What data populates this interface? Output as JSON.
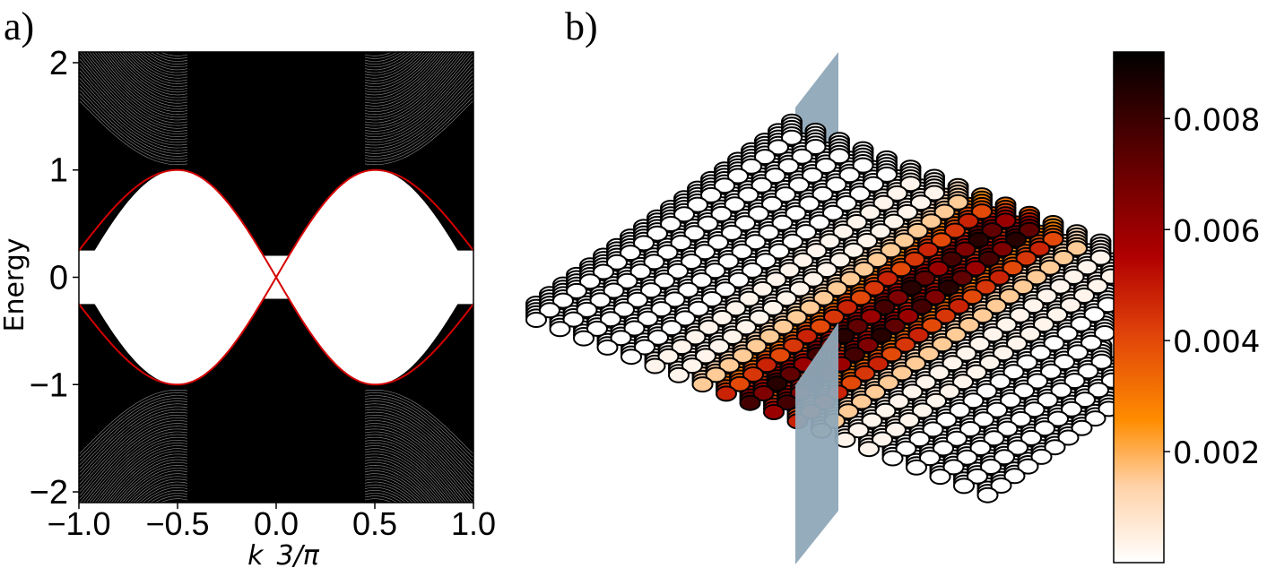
{
  "panel_labels": {
    "a": "a)",
    "b": "b)"
  },
  "chart_data": [
    {
      "type": "line",
      "panel": "a)",
      "xlabel": "k_3/π",
      "ylabel": "Energy",
      "xlim": [
        -1.0,
        1.0
      ],
      "ylim": [
        -2.1,
        2.1
      ],
      "x_ticks": [
        "−1.0",
        "−0.5",
        "0.0",
        "0.5",
        "1.0"
      ],
      "y_ticks": [
        "2",
        "1",
        "0",
        "−1",
        "−2"
      ],
      "x_tick_values": [
        -1.0,
        -0.5,
        0.0,
        0.5,
        1.0
      ],
      "y_tick_values": [
        2,
        1,
        0,
        -1,
        -2
      ],
      "bulk_band_color": "#000000",
      "bulk_band_gap_at_zero": 0.2,
      "bulk_band_edge": 2.1,
      "series": [
        {
          "color": "#d40000",
          "x": [
            -1.0,
            -0.75,
            -0.5,
            -0.25,
            0.0,
            0.25,
            0.5,
            0.75,
            1.0
          ],
          "y": [
            0.25,
            0.77,
            1.0,
            0.69,
            0.0,
            0.69,
            1.0,
            0.77,
            0.25
          ]
        },
        {
          "color": "#d40000",
          "x": [
            -1.0,
            -0.75,
            -0.5,
            -0.25,
            0.0,
            0.25,
            0.5,
            0.75,
            1.0
          ],
          "y": [
            -0.25,
            -0.77,
            -1.0,
            -0.69,
            0.0,
            -0.69,
            -1.0,
            -0.77,
            -0.25
          ]
        }
      ]
    },
    {
      "type": "heatmap",
      "panel": "b)",
      "colormap": [
        "#ffffff",
        "#ffd2a8",
        "#ff8c00",
        "#e0420a",
        "#b00000",
        "#5a0000",
        "#000000"
      ],
      "colorbar_ticks": [
        "0.008",
        "0.006",
        "0.004",
        "0.002"
      ],
      "colorbar_tick_values": [
        0.008,
        0.006,
        0.004,
        0.002
      ],
      "colorbar_range": [
        0.0,
        0.0092
      ],
      "plane_color": "#8fa8b8",
      "lattice": {
        "rows": 20,
        "cols": 20,
        "layers": 6
      },
      "values": {
        "near_plane": 0.006,
        "plane_edge": 0.004,
        "mid": 0.0015,
        "far": 0.0003,
        "background": 0.0
      }
    }
  ]
}
